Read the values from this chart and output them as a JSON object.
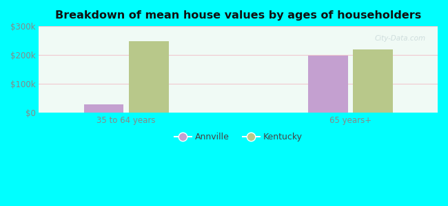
{
  "title": "Breakdown of mean house values by ages of householders",
  "categories": [
    "35 to 64 years",
    "65 years+"
  ],
  "annville_values": [
    30000,
    197000
  ],
  "kentucky_values": [
    248000,
    220000
  ],
  "annville_color": "#c4a0d0",
  "kentucky_color": "#b8c88a",
  "ylim": [
    0,
    300000
  ],
  "yticks": [
    0,
    100000,
    200000,
    300000
  ],
  "ytick_labels": [
    "$0",
    "$100k",
    "$200k",
    "$300k"
  ],
  "background_color": "#00ffff",
  "plot_bg_top": "#f5faf5",
  "plot_bg_bottom": "#d8f5e8",
  "grid_color": "#f0c8d0",
  "legend_labels": [
    "Annville",
    "Kentucky"
  ],
  "bar_width": 0.32,
  "tick_label_color": "#888888",
  "title_color": "#111111",
  "watermark_color": "#c8d8d8"
}
